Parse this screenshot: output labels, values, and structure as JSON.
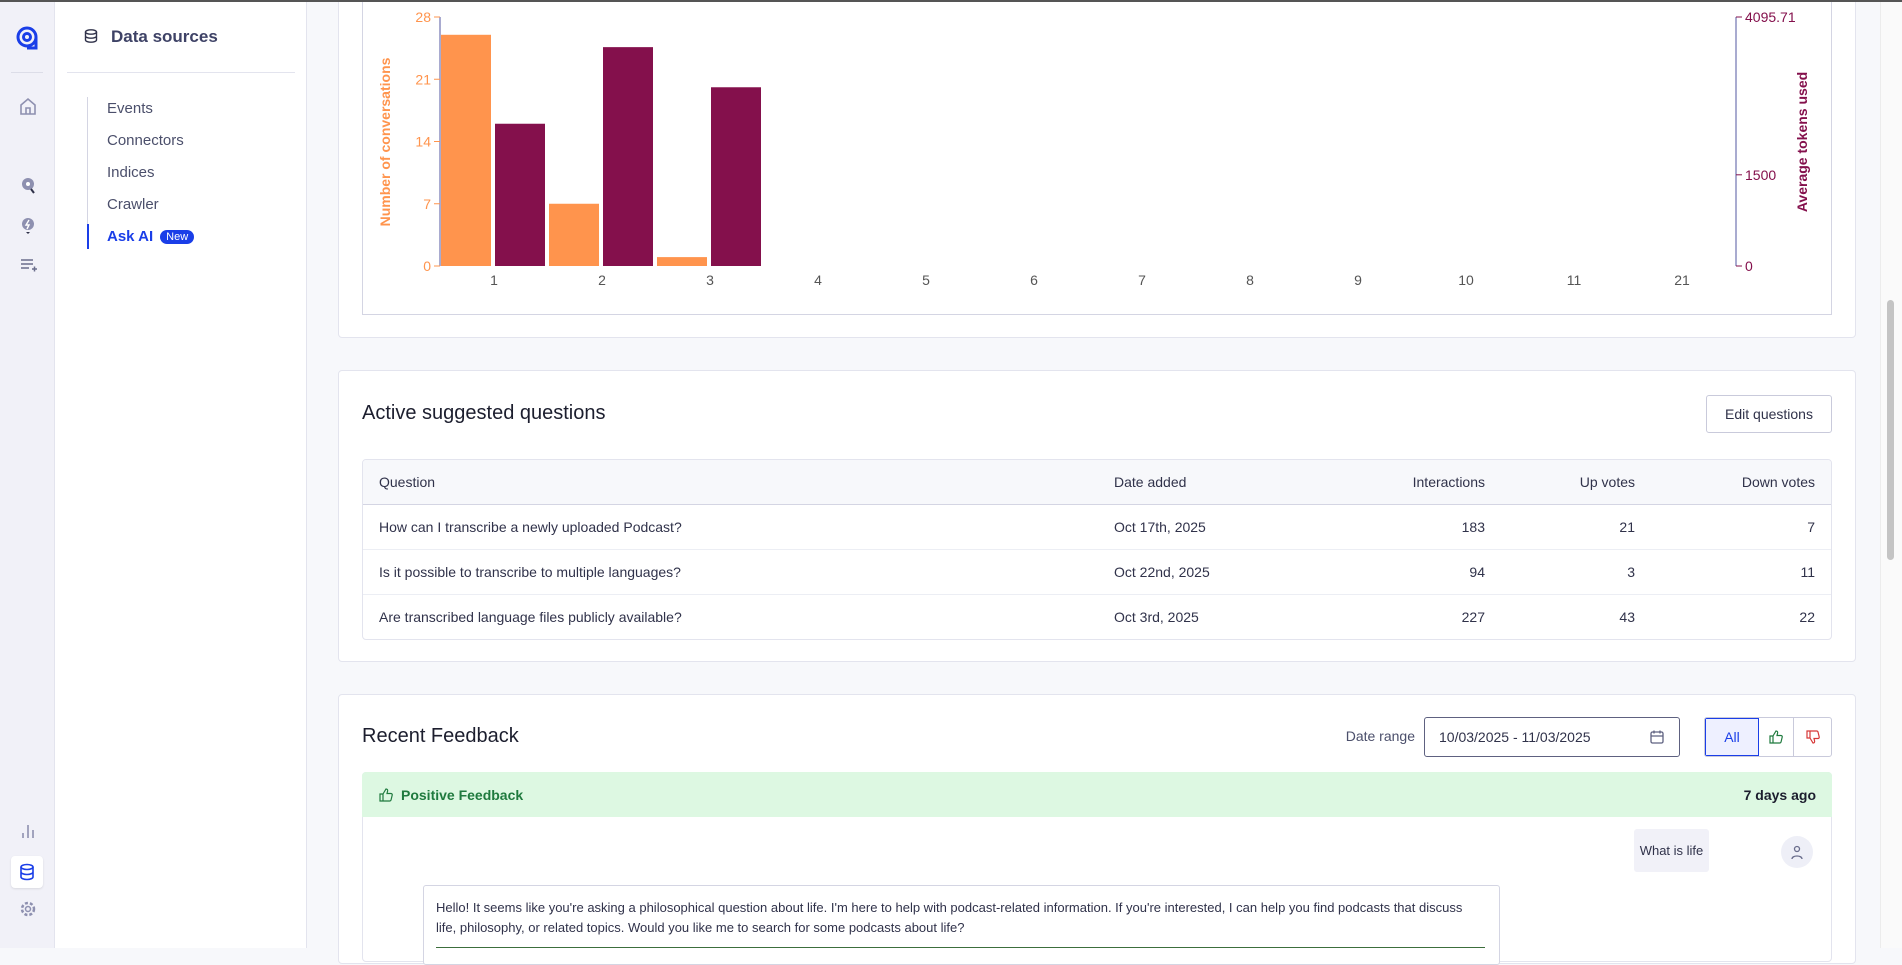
{
  "rail": {
    "icons": [
      "logo-icon",
      "home-icon",
      "search-insights-icon",
      "ideas-icon",
      "playlist-add-icon",
      "analytics-icon",
      "database-icon",
      "gear-icon"
    ]
  },
  "sidebar": {
    "title": "Data sources",
    "items": [
      {
        "label": "Events"
      },
      {
        "label": "Connectors"
      },
      {
        "label": "Indices"
      },
      {
        "label": "Crawler"
      },
      {
        "label": "Ask AI",
        "badge": "New",
        "active": true
      }
    ]
  },
  "chart_data": {
    "type": "bar",
    "categories": [
      "1",
      "2",
      "3",
      "4",
      "5",
      "6",
      "7",
      "8",
      "9",
      "10",
      "11",
      "21"
    ],
    "series": [
      {
        "name": "Number of conversations",
        "axis": "left",
        "color": "#ff944d",
        "values": [
          26,
          7,
          1,
          0,
          0,
          0,
          0,
          0,
          0,
          0,
          0,
          0
        ]
      },
      {
        "name": "Average tokens used",
        "axis": "right",
        "color": "#84104c",
        "values": [
          2340,
          3600,
          2940,
          0,
          0,
          0,
          0,
          0,
          0,
          0,
          0,
          0
        ]
      }
    ],
    "ylabel": "Number of conversations",
    "ylim": [
      0,
      28
    ],
    "yticks": [
      "0",
      "7",
      "14",
      "21",
      "28"
    ],
    "y2label": "Average tokens used",
    "y2lim": [
      0,
      4095.71
    ],
    "y2ticks": [
      "0",
      "1500",
      "4095.71"
    ],
    "grid": false
  },
  "questions": {
    "title": "Active suggested questions",
    "edit_label": "Edit questions",
    "columns": [
      "Question",
      "Date added",
      "Interactions",
      "Up votes",
      "Down votes"
    ],
    "rows": [
      [
        "How can I transcribe a newly uploaded Podcast?",
        "Oct 17th, 2025",
        "183",
        "21",
        "7"
      ],
      [
        "Is it possible to transcribe to multiple languages?",
        "Oct 22nd, 2025",
        "94",
        "3",
        "11"
      ],
      [
        "Are transcribed language files publicly available?",
        "Oct 3rd, 2025",
        "227",
        "43",
        "22"
      ]
    ]
  },
  "feedback": {
    "title": "Recent Feedback",
    "date_label": "Date range",
    "date_value": "10/03/2025 - 11/03/2025",
    "filter_all": "All",
    "item": {
      "type": "Positive Feedback",
      "time": "7 days ago",
      "user_message": "What is life",
      "assistant_message": "Hello! It seems like you're asking a philosophical question about life. I'm here to help with podcast-related information. If you're interested, I can help you find podcasts that discuss life, philosophy, or related topics. Would you like me to search for some podcasts about life?"
    }
  },
  "colors": {
    "accent": "#1a3ee8",
    "positive_bg": "#ddf8e2",
    "positive_text": "#1f7a3e",
    "negative": "#d63838"
  }
}
